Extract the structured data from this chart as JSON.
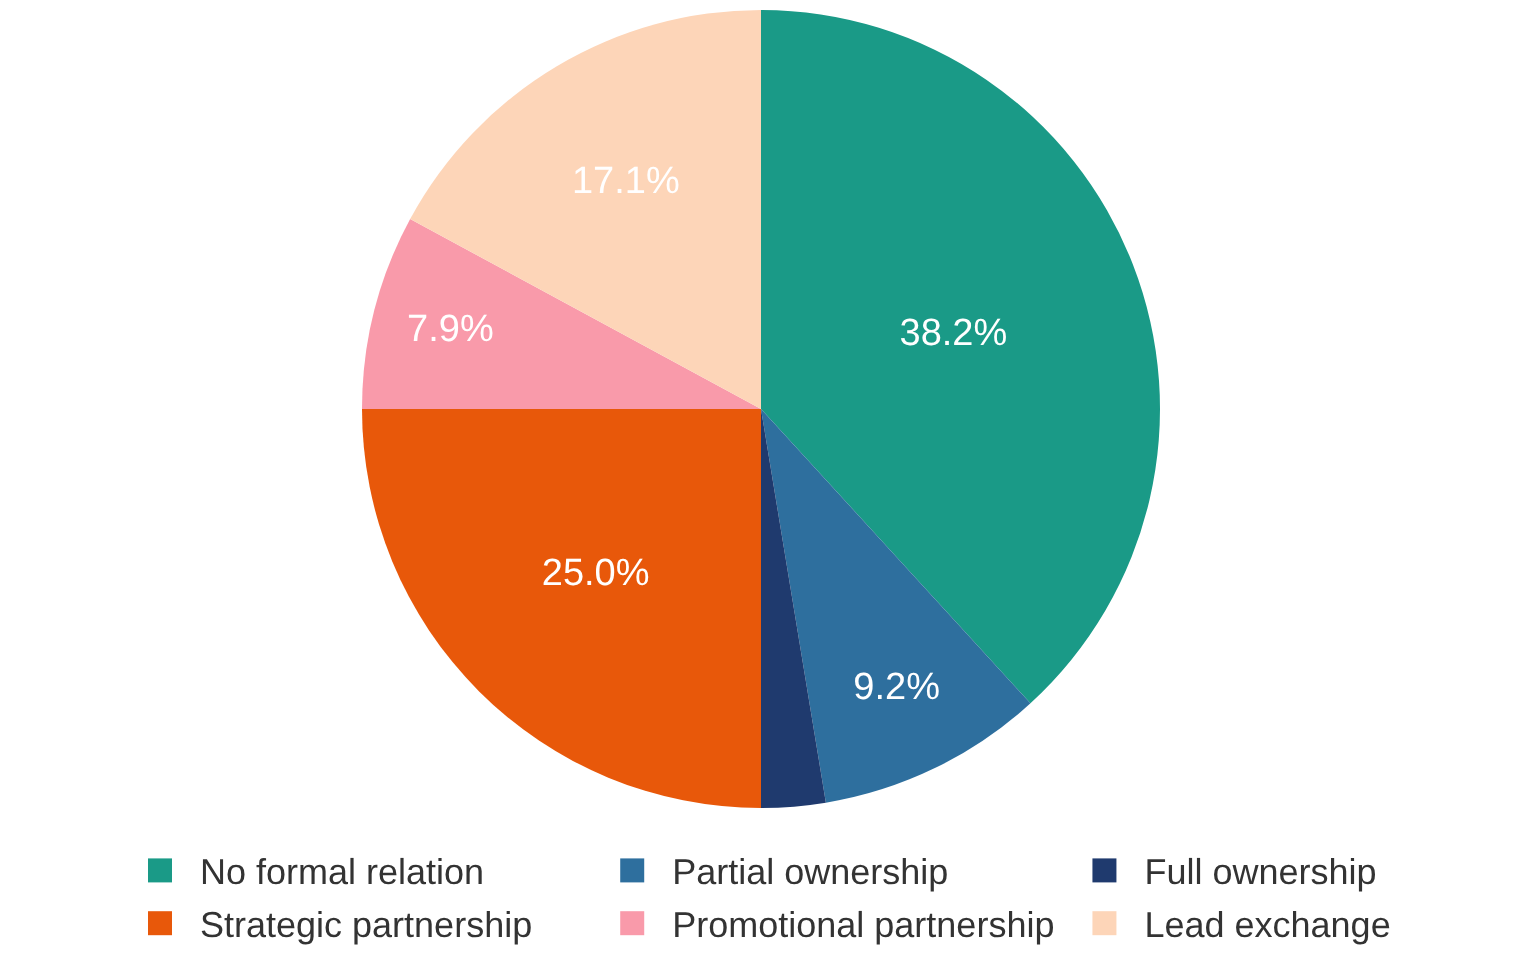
{
  "chart_data": {
    "type": "pie",
    "categories": [
      "No formal relation",
      "Partial ownership",
      "Full ownership",
      "Strategic partnership",
      "Promotional partnership",
      "Lead exchange"
    ],
    "values": [
      38.2,
      9.2,
      2.6,
      25.0,
      7.9,
      17.1
    ],
    "colors": [
      "#1a9a87",
      "#2e6f9e",
      "#1f3a6e",
      "#e8580a",
      "#f99aaa",
      "#fdd5b8"
    ],
    "value_labels": [
      "38.2%",
      "9.2%",
      null,
      "25.0%",
      "7.9%",
      "17.1%"
    ],
    "legend": "bottom"
  }
}
